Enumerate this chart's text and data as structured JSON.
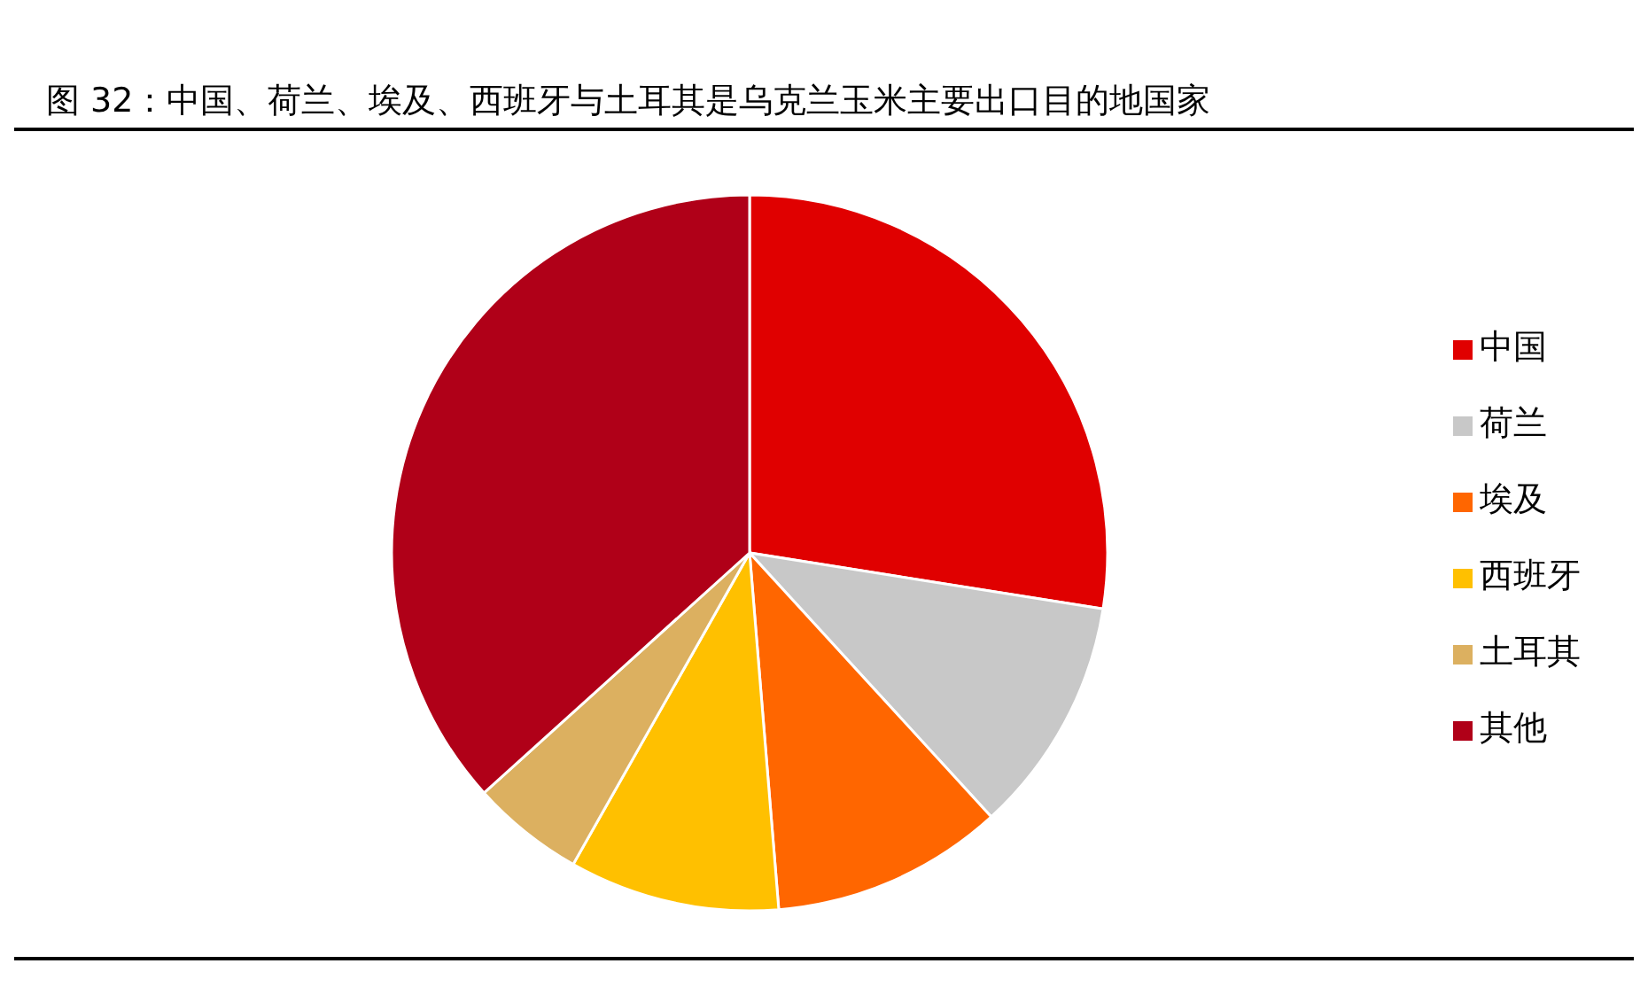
{
  "chart_data": {
    "type": "pie",
    "title": "图 32：中国、荷兰、埃及、西班牙与土耳其是乌克兰玉米主要出口目的地国家",
    "categories": [
      "中国",
      "荷兰",
      "埃及",
      "西班牙",
      "土耳其",
      "其他"
    ],
    "values": [
      27.5,
      10.7,
      10.5,
      9.5,
      5.1,
      36.7
    ],
    "colors": [
      "#e00000",
      "#c8c8c8",
      "#ff6600",
      "#ffc000",
      "#dcb060",
      "#b00018"
    ],
    "legend": "right"
  }
}
